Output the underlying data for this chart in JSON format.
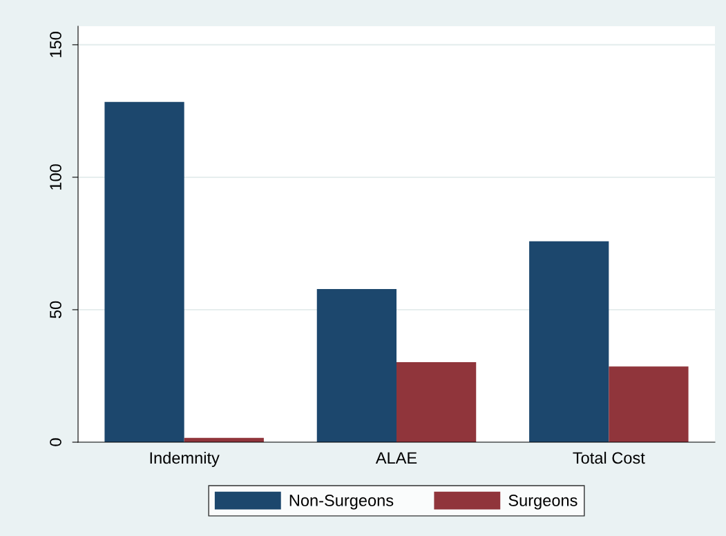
{
  "chart_data": {
    "type": "bar",
    "categories": [
      "Indemnity",
      "ALAE",
      "Total Cost"
    ],
    "series": [
      {
        "name": "Non-Surgeons",
        "color": "#1c476d",
        "values": [
          128.4,
          57.8,
          75.8
        ]
      },
      {
        "name": "Surgeons",
        "color": "#90353b",
        "values": [
          1.6,
          30.2,
          28.6
        ]
      }
    ],
    "ylim": [
      0,
      157
    ],
    "yticks": [
      0,
      50,
      100,
      150
    ],
    "grid": "y",
    "legend": "bottom"
  }
}
